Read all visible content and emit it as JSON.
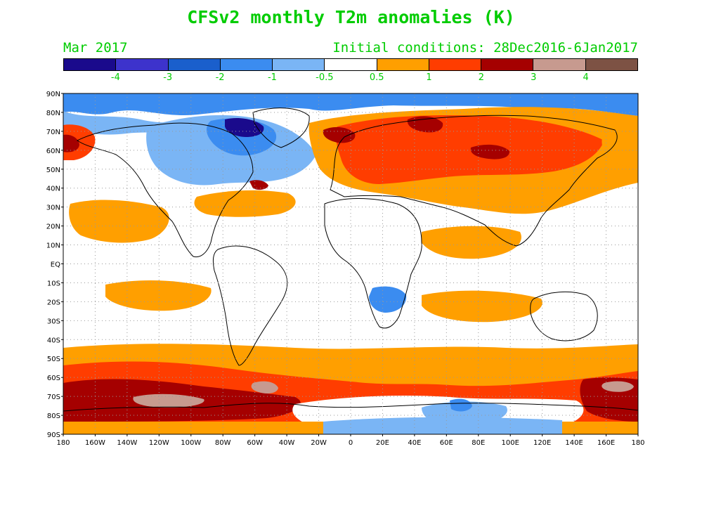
{
  "title": "CFSv2 monthly T2m anomalies (K)",
  "month": "Mar 2017",
  "initial_conditions": "Initial conditions: 28Dec2016-6Jan2017",
  "text_color": "#00cc00",
  "colorbar": {
    "colors": [
      "#1a0a8c",
      "#3d33cc",
      "#1a5fcc",
      "#3b8cf0",
      "#7ab5f5",
      "#ffffff",
      "#ff9f00",
      "#ff3d00",
      "#a50000",
      "#c79a8f",
      "#7d5244"
    ],
    "labels": [
      "-4",
      "-3",
      "-2",
      "-1",
      "-0.5",
      "0.5",
      "1",
      "2",
      "3",
      "4"
    ]
  },
  "lat_labels": [
    "90N",
    "80N",
    "70N",
    "60N",
    "50N",
    "40N",
    "30N",
    "20N",
    "10N",
    "EQ",
    "10S",
    "20S",
    "30S",
    "40S",
    "50S",
    "60S",
    "70S",
    "80S",
    "90S"
  ],
  "lon_labels": [
    "180",
    "160W",
    "140W",
    "120W",
    "100W",
    "80W",
    "60W",
    "40W",
    "20W",
    "0",
    "20E",
    "40E",
    "60E",
    "80E",
    "100E",
    "120E",
    "140E",
    "160E",
    "180"
  ]
}
